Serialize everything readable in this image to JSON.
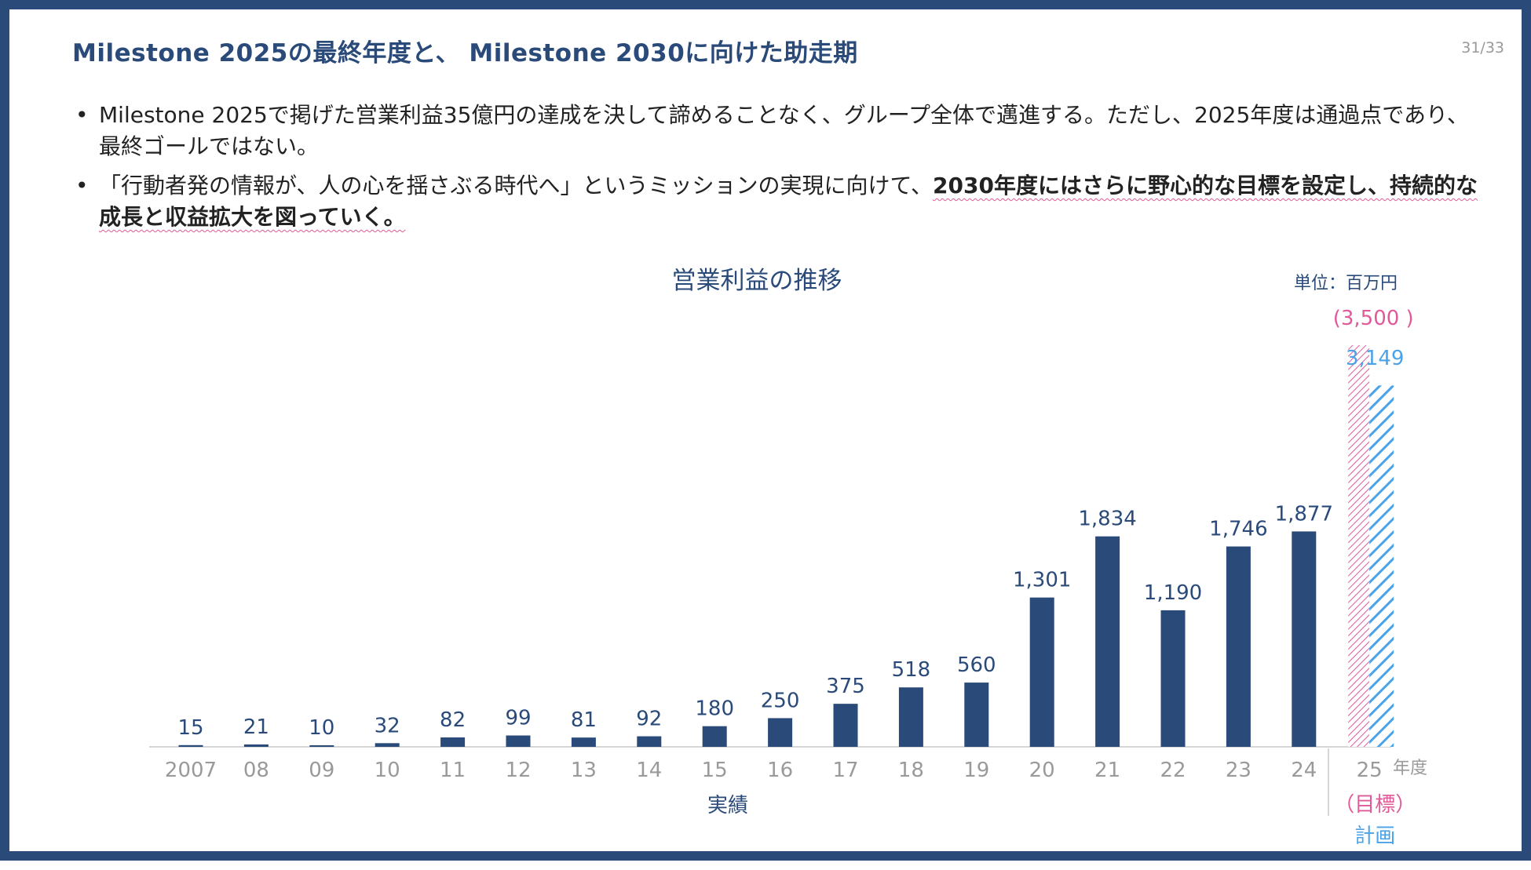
{
  "slide": {
    "title": "Milestone 2025の最終年度と、 Milestone 2030に向けた助走期",
    "page_number": "31/33",
    "bullets": [
      {
        "marker": "•",
        "text": "Milestone 2025で掲げた営業利益35億円の達成を決して諦めることなく、グループ全体で邁進する。ただし、2025年度は通過点であり、最終ゴールではない。",
        "emphasis": ""
      },
      {
        "marker": "•",
        "text": "「行動者発の情報が、人の心を揺さぶる時代へ」というミッションの実現に向けて、",
        "emphasis": "2030年度にはさらに野心的な目標を設定し、持続的な成長と収益拡大を図っていく。"
      }
    ]
  },
  "chart_data": {
    "type": "bar",
    "title": "営業利益の推移",
    "unit_label": "単位：百万円",
    "xlabel": "年度",
    "ylim": [
      0,
      3500
    ],
    "categories": [
      "2007",
      "08",
      "09",
      "10",
      "11",
      "12",
      "13",
      "14",
      "15",
      "16",
      "17",
      "18",
      "19",
      "20",
      "21",
      "22",
      "23",
      "24",
      "25"
    ],
    "series": [
      {
        "values": [
          15,
          21,
          10,
          32,
          82,
          99,
          81,
          92,
          180,
          250,
          375,
          518,
          560,
          1301,
          1834,
          1190,
          1746,
          1877,
          null
        ]
      }
    ],
    "value_labels": [
      "15",
      "21",
      "10",
      "32",
      "82",
      "99",
      "81",
      "92",
      "180",
      "250",
      "375",
      "518",
      "560",
      "1,301",
      "1,834",
      "1,190",
      "1,746",
      "1,877"
    ],
    "target": {
      "category": "25",
      "value": 3500,
      "label": "(3,500 )",
      "caption": "（目標）",
      "color": "#e05a9a"
    },
    "plan": {
      "category": "25",
      "value": 3149,
      "label": "3,149",
      "caption": "計画",
      "color": "#4aa3e8"
    },
    "group_labels": {
      "actual": "実績"
    },
    "colors": {
      "bar": "#2a4a7a",
      "title": "#2a4a7a",
      "axis_text": "#9a9a9a",
      "value_label": "#2a4a7a"
    }
  }
}
